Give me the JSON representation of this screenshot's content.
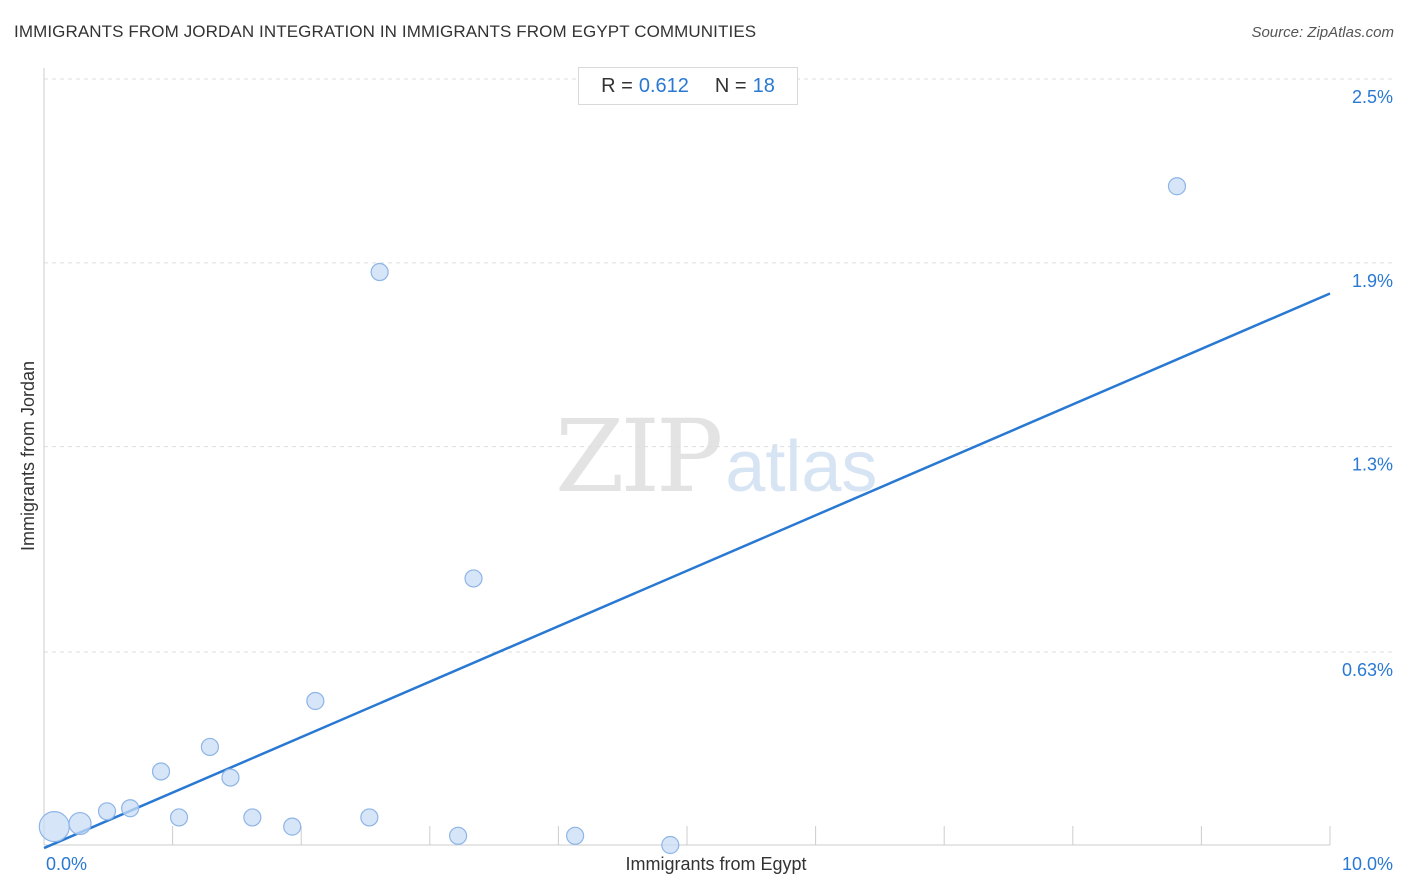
{
  "header": {
    "title": "IMMIGRANTS FROM JORDAN INTEGRATION IN IMMIGRANTS FROM EGYPT COMMUNITIES",
    "source": "Source: ZipAtlas.com"
  },
  "stats": {
    "r_label": "R =",
    "r_value": "0.612",
    "n_label": "N =",
    "n_value": "18"
  },
  "watermark": {
    "zip": "ZIP",
    "atlas": "atlas"
  },
  "colors": {
    "accent": "#2979d3",
    "point_fill": "#c8dcf5",
    "point_stroke": "#8db5e6",
    "grid": "#dddddd"
  },
  "chart_data": {
    "type": "scatter",
    "xlabel": "Immigrants from Egypt",
    "ylabel": "Immigrants from Jordan",
    "xlim": [
      0,
      10
    ],
    "ylim": [
      0,
      2.5
    ],
    "x_tick_labels": [
      {
        "value": 0,
        "label": "0.0%"
      },
      {
        "value": 10,
        "label": "10.0%"
      }
    ],
    "y_tick_labels": [
      {
        "value": 0.63,
        "label": "0.63%"
      },
      {
        "value": 1.3,
        "label": "1.3%"
      },
      {
        "value": 1.9,
        "label": "1.9%"
      },
      {
        "value": 2.5,
        "label": "2.5%"
      }
    ],
    "grid": true,
    "points": [
      {
        "x": 0.08,
        "y": 0.06,
        "size": "large"
      },
      {
        "x": 0.28,
        "y": 0.07,
        "size": "medium"
      },
      {
        "x": 0.49,
        "y": 0.11,
        "size": "small"
      },
      {
        "x": 0.67,
        "y": 0.12,
        "size": "small"
      },
      {
        "x": 0.91,
        "y": 0.24,
        "size": "small"
      },
      {
        "x": 1.05,
        "y": 0.09,
        "size": "small"
      },
      {
        "x": 1.29,
        "y": 0.32,
        "size": "small"
      },
      {
        "x": 1.45,
        "y": 0.22,
        "size": "small"
      },
      {
        "x": 1.62,
        "y": 0.09,
        "size": "small"
      },
      {
        "x": 1.93,
        "y": 0.06,
        "size": "small"
      },
      {
        "x": 2.11,
        "y": 0.47,
        "size": "small"
      },
      {
        "x": 2.53,
        "y": 0.09,
        "size": "small"
      },
      {
        "x": 2.61,
        "y": 1.87,
        "size": "small"
      },
      {
        "x": 3.22,
        "y": 0.03,
        "size": "small"
      },
      {
        "x": 3.34,
        "y": 0.87,
        "size": "small"
      },
      {
        "x": 4.13,
        "y": 0.03,
        "size": "small"
      },
      {
        "x": 4.87,
        "y": 0.0,
        "size": "small"
      },
      {
        "x": 8.81,
        "y": 2.15,
        "size": "small"
      }
    ],
    "trendline": {
      "x": [
        0,
        10
      ],
      "y": [
        -0.01,
        1.8
      ]
    }
  }
}
